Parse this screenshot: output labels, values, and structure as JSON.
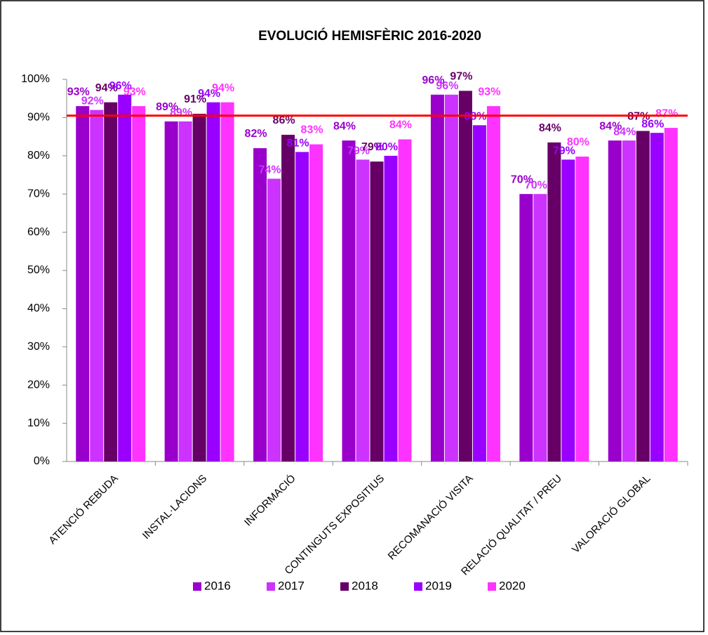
{
  "chart_data": {
    "type": "bar",
    "title": "EVOLUCIÓ HEMISFÈRIC 2016-2020",
    "categories": [
      "ATENCIÓ REBUDA",
      "INSTAL·LACIONS",
      "INFORMACIÓ",
      "CONTINGUTS EXPOSITIUS",
      "RECOMANACIÓ VISITA",
      "RELACIÓ QUALITAT / PREU",
      "VALORACIÓ GLOBAL"
    ],
    "series": [
      {
        "name": "2016",
        "color": "#9900cc",
        "values": [
          93,
          89,
          82,
          84,
          96,
          70,
          84
        ],
        "value_labels": [
          "93%",
          "89%",
          "82%",
          "84%",
          "96%",
          "70%",
          "84%"
        ]
      },
      {
        "name": "2017",
        "color": "#cc33ff",
        "values": [
          92,
          89,
          74,
          79,
          96,
          70,
          84
        ],
        "value_labels": [
          "92%",
          "89%",
          "74%",
          "79%",
          "96%",
          "70%",
          "84%"
        ]
      },
      {
        "name": "2018",
        "color": "#660066",
        "values": [
          94,
          91,
          85.5,
          78.5,
          97,
          83.5,
          86.5
        ],
        "value_labels": [
          "94%",
          "91%",
          "86%",
          "79%",
          "97%",
          "84%",
          "87%"
        ]
      },
      {
        "name": "2019",
        "color": "#9900ff",
        "values": [
          96,
          94,
          81,
          80,
          88,
          79,
          86
        ],
        "value_labels": [
          "96%",
          "94%",
          "81%",
          "80%",
          "88%",
          "79%",
          "86%"
        ]
      },
      {
        "name": "2020",
        "color": "#ff33ff",
        "values": [
          93,
          94,
          83,
          84.3,
          93,
          79.8,
          87.3
        ],
        "value_labels": [
          "93%",
          "94%",
          "83%",
          "84%",
          "93%",
          "80%",
          "87%"
        ]
      }
    ],
    "ylim": [
      0,
      100
    ],
    "yticks": [
      {
        "value": 0,
        "label": "0%"
      },
      {
        "value": 10,
        "label": "10%"
      },
      {
        "value": 20,
        "label": "20%"
      },
      {
        "value": 30,
        "label": "30%"
      },
      {
        "value": 40,
        "label": "40%"
      },
      {
        "value": 50,
        "label": "50%"
      },
      {
        "value": 60,
        "label": "60%"
      },
      {
        "value": 70,
        "label": "70%"
      },
      {
        "value": 80,
        "label": "80%"
      },
      {
        "value": 90,
        "label": "90%"
      },
      {
        "value": 100,
        "label": "100%"
      }
    ],
    "reference_line": {
      "value": 90.5,
      "color": "#ff0000"
    },
    "legend": "bottom"
  }
}
